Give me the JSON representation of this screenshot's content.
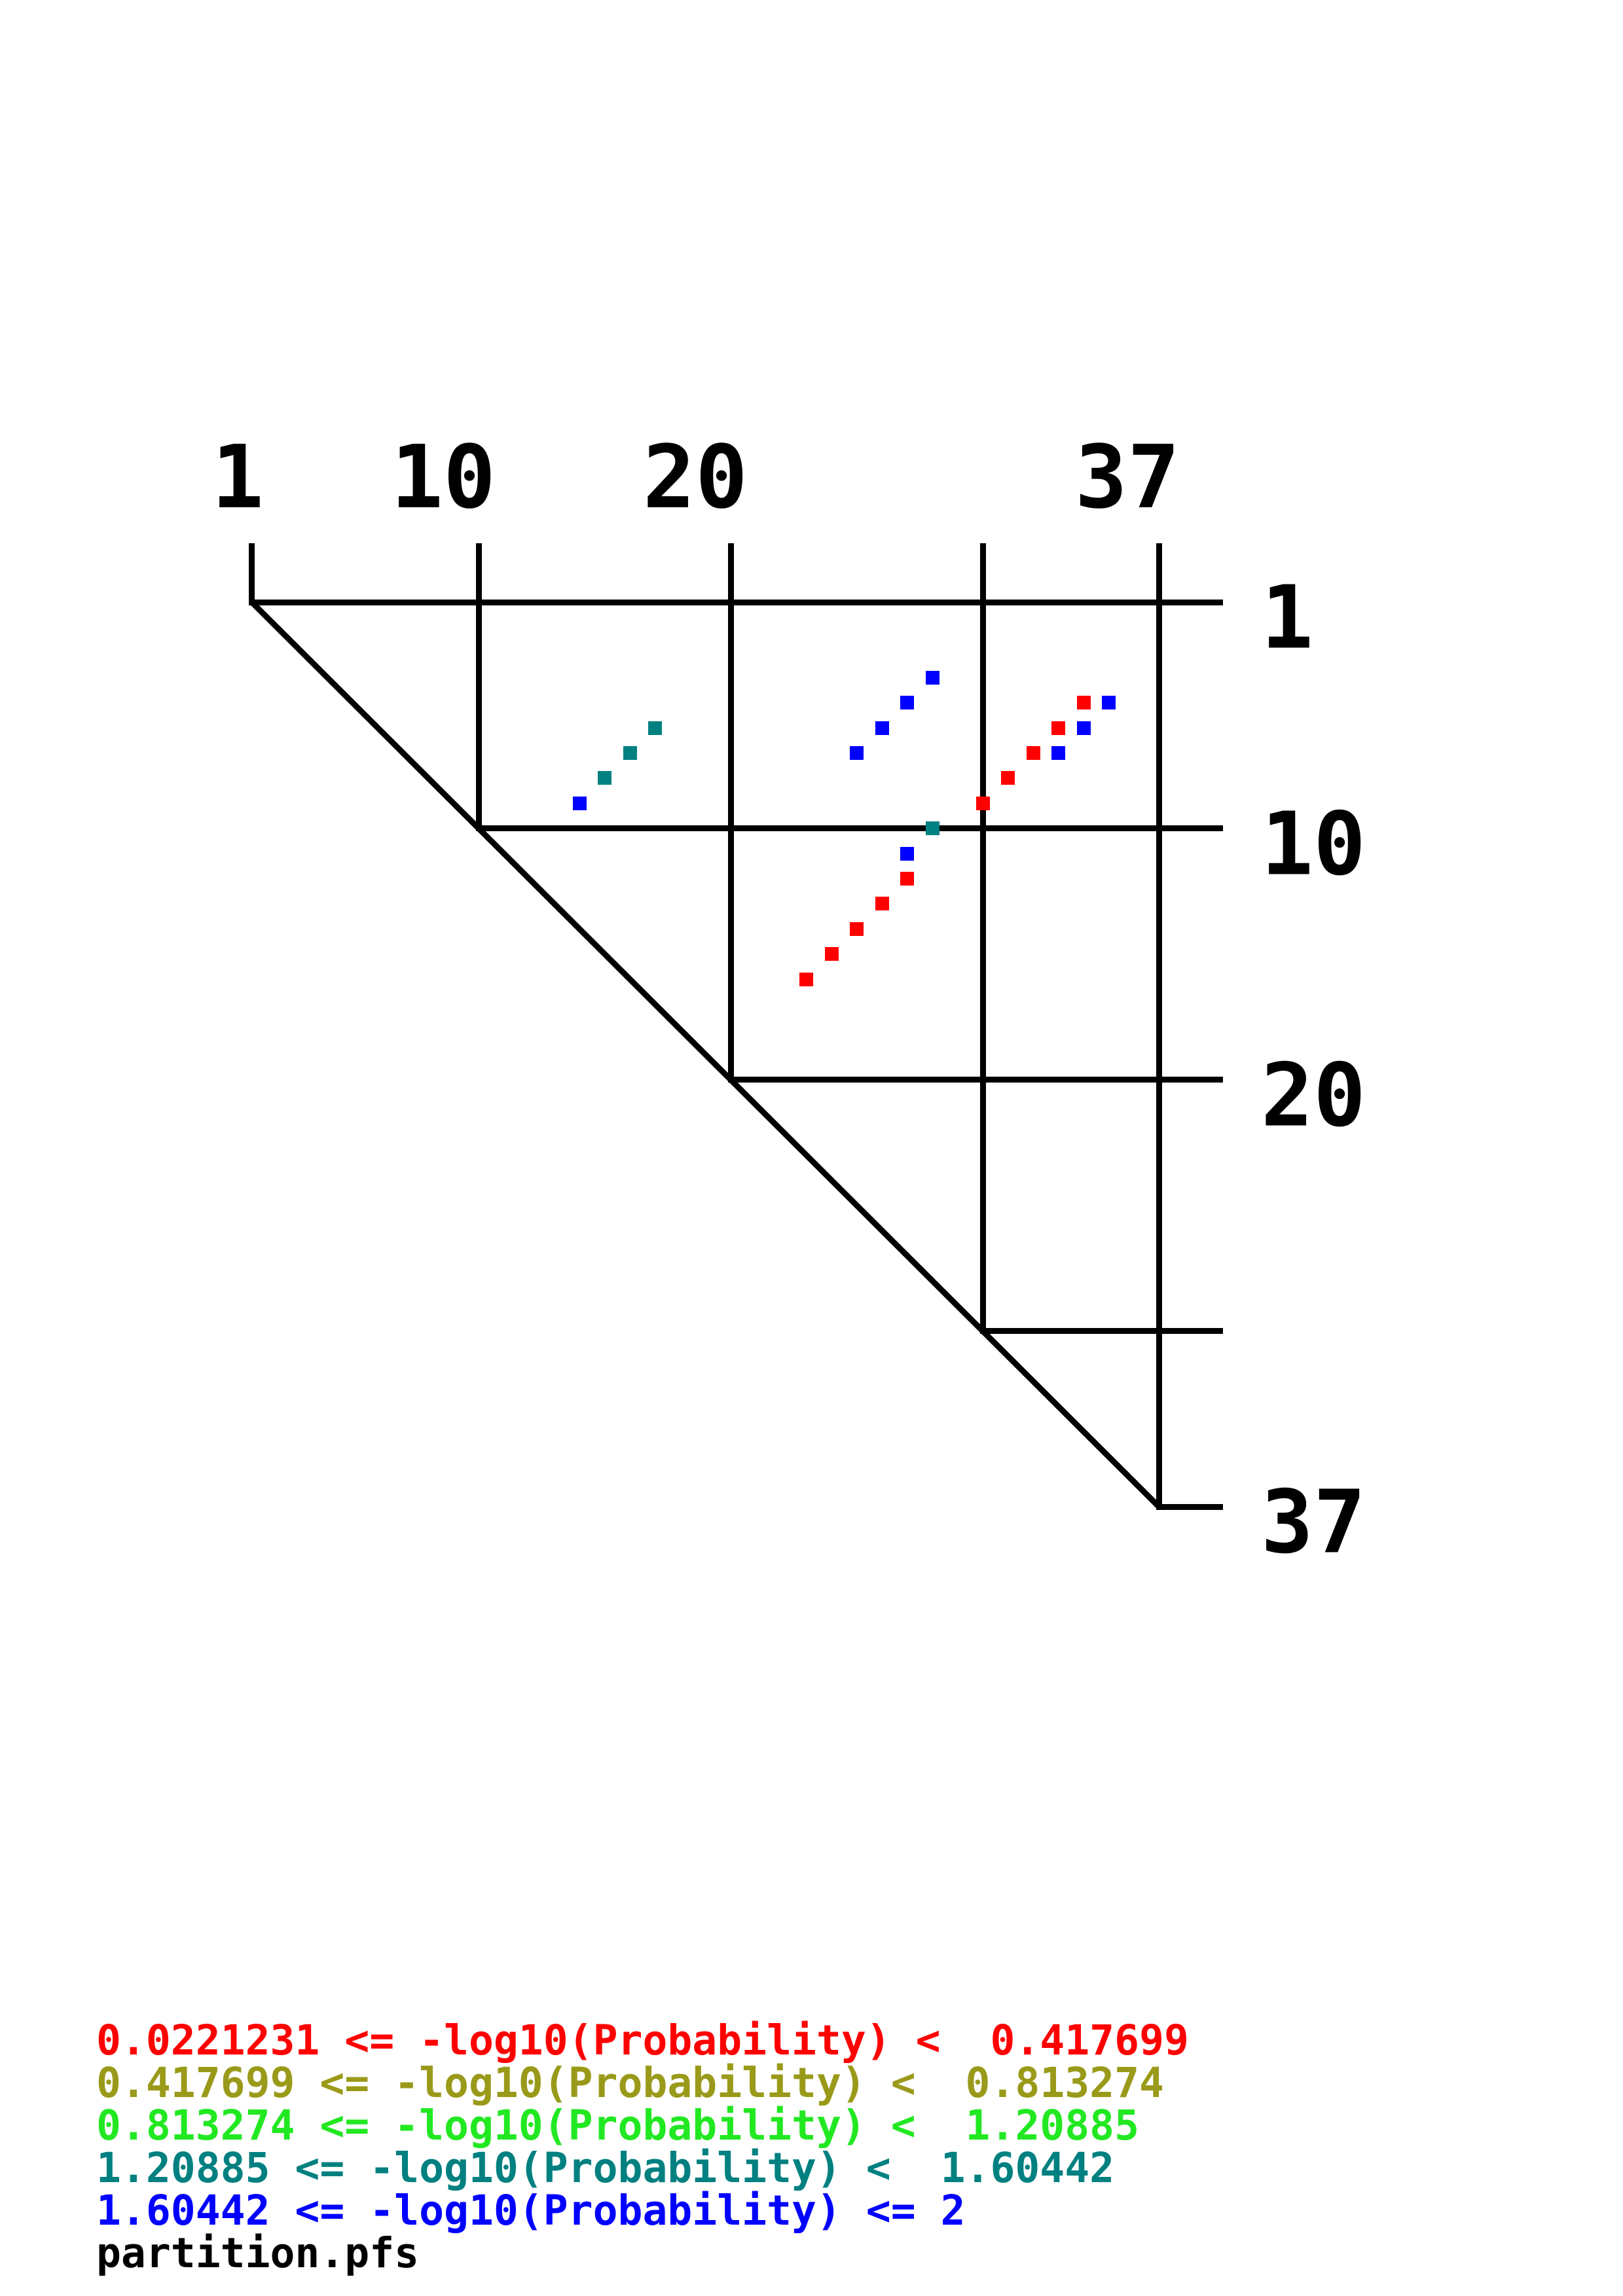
{
  "page": {
    "background": "#ffffff"
  },
  "chart_data": {
    "type": "scatter",
    "kind": "rna-base-pair-probability-dot-plot",
    "title": "",
    "source_file_label": "partition.pfs",
    "sequence_length": 37,
    "grid": true,
    "diagonal": true,
    "x_axis": {
      "side": "top",
      "range": [
        1,
        37
      ],
      "ticks": [
        1,
        10,
        20,
        30,
        37
      ],
      "labels": [
        {
          "text": "1",
          "at": 1
        },
        {
          "text": "10",
          "at": 10
        },
        {
          "text": "20",
          "at": 20
        },
        {
          "text": "37",
          "at": 37
        }
      ]
    },
    "y_axis": {
      "side": "right",
      "range": [
        1,
        37
      ],
      "ticks": [
        1,
        10,
        20,
        30,
        37
      ],
      "labels": [
        {
          "text": "1",
          "at": 1
        },
        {
          "text": "10",
          "at": 10
        },
        {
          "text": "20",
          "at": 20
        },
        {
          "text": "37",
          "at": 37
        }
      ]
    },
    "points": [
      {
        "i": 9,
        "j": 14,
        "bin": 5
      },
      {
        "i": 8,
        "j": 15,
        "bin": 4
      },
      {
        "i": 7,
        "j": 16,
        "bin": 4
      },
      {
        "i": 6,
        "j": 17,
        "bin": 4
      },
      {
        "i": 7,
        "j": 25,
        "bin": 5
      },
      {
        "i": 6,
        "j": 26,
        "bin": 5
      },
      {
        "i": 5,
        "j": 27,
        "bin": 5
      },
      {
        "i": 4,
        "j": 28,
        "bin": 5
      },
      {
        "i": 10,
        "j": 28,
        "bin": 4
      },
      {
        "i": 11,
        "j": 27,
        "bin": 5
      },
      {
        "i": 12,
        "j": 27,
        "bin": 1
      },
      {
        "i": 13,
        "j": 26,
        "bin": 1
      },
      {
        "i": 14,
        "j": 25,
        "bin": 1
      },
      {
        "i": 15,
        "j": 24,
        "bin": 1
      },
      {
        "i": 16,
        "j": 23,
        "bin": 1
      },
      {
        "i": 9,
        "j": 30,
        "bin": 1
      },
      {
        "i": 8,
        "j": 31,
        "bin": 1
      },
      {
        "i": 7,
        "j": 32,
        "bin": 1
      },
      {
        "i": 7,
        "j": 33,
        "bin": 5
      },
      {
        "i": 6,
        "j": 33,
        "bin": 1
      },
      {
        "i": 6,
        "j": 34,
        "bin": 5
      },
      {
        "i": 5,
        "j": 34,
        "bin": 1
      },
      {
        "i": 5,
        "j": 35,
        "bin": 5
      }
    ],
    "bins": [
      {
        "bin": 1,
        "color_name": "red",
        "color": "#ff0000",
        "label": "0.0221231 <= -log10(Probability) <  0.417699"
      },
      {
        "bin": 2,
        "color_name": "olive",
        "color": "#9a9a1a",
        "label": "0.417699 <= -log10(Probability) <  0.813274"
      },
      {
        "bin": 3,
        "color_name": "green",
        "color": "#22e822",
        "label": "0.813274 <= -log10(Probability) <  1.20885"
      },
      {
        "bin": 4,
        "color_name": "teal",
        "color": "#008080",
        "label": "1.20885 <= -log10(Probability) <  1.60442"
      },
      {
        "bin": 5,
        "color_name": "blue",
        "color": "#0000ff",
        "label": "1.60442 <= -log10(Probability) <= 2"
      }
    ]
  }
}
